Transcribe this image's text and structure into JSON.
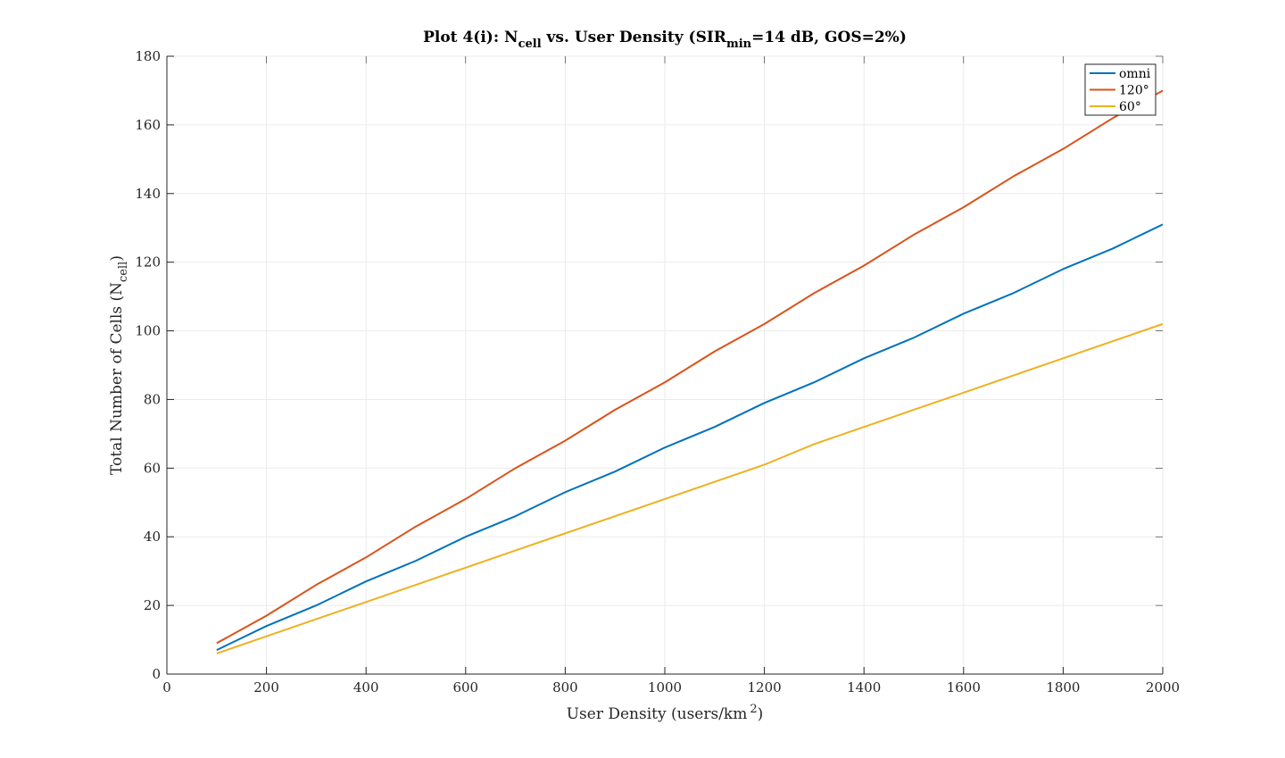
{
  "chart_data": {
    "type": "line",
    "title": {
      "prefix": "Plot 4(i): N",
      "sub1": "cell",
      "middle": " vs. User Density (SIR",
      "sub2": "min",
      "suffix": "=14 dB, GOS=2%)"
    },
    "xlabel": {
      "text": "User Density (users/km",
      "sup": "2",
      "close": ")"
    },
    "ylabel": {
      "text": "Total Number of Cells (N",
      "sub": "cell",
      "close": ")"
    },
    "xlim": [
      0,
      2000
    ],
    "ylim": [
      0,
      180
    ],
    "xticks": [
      0,
      200,
      400,
      600,
      800,
      1000,
      1200,
      1400,
      1600,
      1800,
      2000
    ],
    "yticks": [
      0,
      20,
      40,
      60,
      80,
      100,
      120,
      140,
      160,
      180
    ],
    "grid": true,
    "legend_position": "top-right",
    "x": [
      100,
      200,
      300,
      400,
      500,
      600,
      700,
      800,
      900,
      1000,
      1100,
      1200,
      1300,
      1400,
      1500,
      1600,
      1700,
      1800,
      1900,
      2000
    ],
    "series": [
      {
        "name": "omni",
        "color": "#0072BD",
        "values": [
          7,
          14,
          20,
          27,
          33,
          40,
          46,
          53,
          59,
          66,
          72,
          79,
          85,
          92,
          98,
          105,
          111,
          118,
          124,
          131
        ]
      },
      {
        "name": "120°",
        "color": "#D95319",
        "values": [
          9,
          17,
          26,
          34,
          43,
          51,
          60,
          68,
          77,
          85,
          94,
          102,
          111,
          119,
          128,
          136,
          145,
          153,
          162,
          170
        ]
      },
      {
        "name": "60°",
        "color": "#EDB120",
        "values": [
          6,
          11,
          16,
          21,
          26,
          31,
          36,
          41,
          46,
          51,
          56,
          61,
          67,
          72,
          77,
          82,
          87,
          92,
          97,
          102
        ]
      }
    ]
  }
}
